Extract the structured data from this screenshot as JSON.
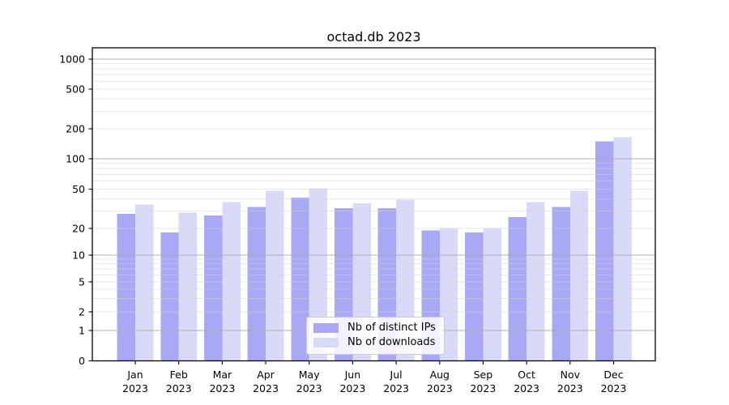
{
  "chart_data": {
    "type": "bar",
    "title": "octad.db 2023",
    "yscale": "symlog",
    "grid": true,
    "ylim": [
      0,
      1300
    ],
    "y_ticks": [
      0,
      1,
      2,
      5,
      10,
      20,
      50,
      100,
      200,
      500,
      1000
    ],
    "y_minor_gridlines": [
      3,
      4,
      6,
      7,
      8,
      9,
      30,
      40,
      60,
      70,
      80,
      90,
      300,
      400,
      600,
      700,
      800,
      900
    ],
    "categories": [
      "Jan 2023",
      "Feb 2023",
      "Mar 2023",
      "Apr 2023",
      "May 2023",
      "Jun 2023",
      "Jul 2023",
      "Aug 2023",
      "Sep 2023",
      "Oct 2023",
      "Nov 2023",
      "Dec 2023"
    ],
    "series": [
      {
        "name": "Nb of distinct IPs",
        "color": "#a8a8f5",
        "values": [
          28,
          18,
          27,
          33,
          41,
          32,
          32,
          19,
          18,
          26,
          33,
          150
        ]
      },
      {
        "name": "Nb of downloads",
        "color": "#d9d9f8",
        "values": [
          35,
          29,
          37,
          48,
          51,
          36,
          39,
          20,
          20,
          37,
          48,
          165
        ]
      }
    ],
    "legend_position": "lower center"
  }
}
